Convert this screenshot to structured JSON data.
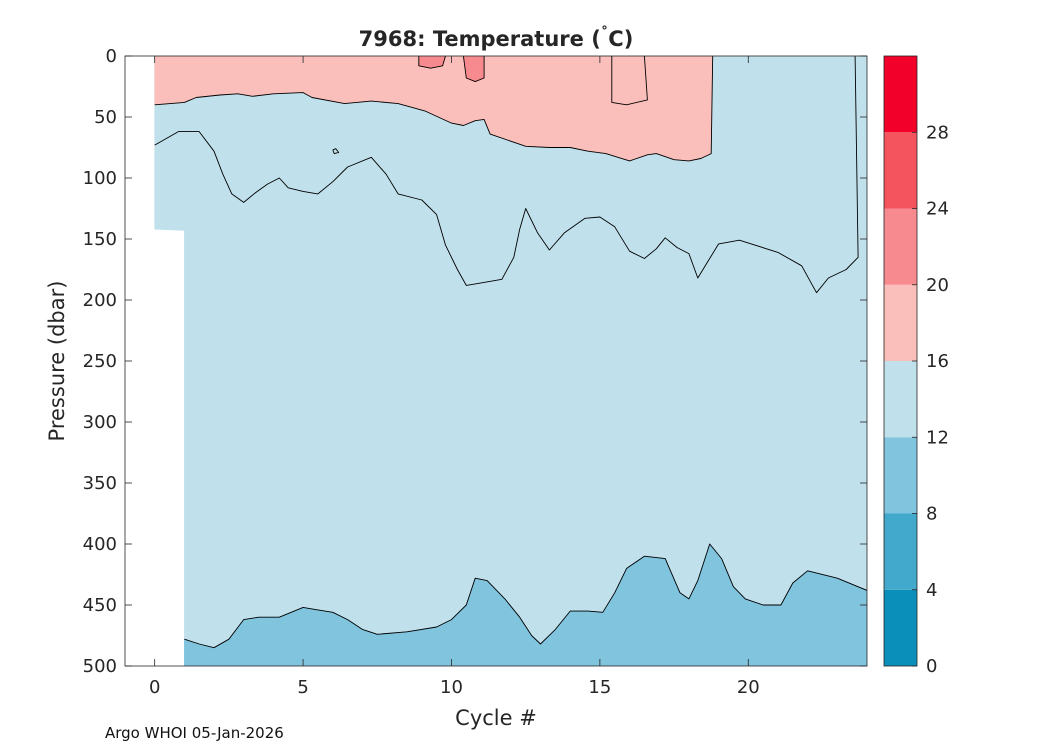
{
  "chart_data": {
    "type": "contour",
    "title_prefix": "7968:  Temperature (",
    "title_degree": "˚",
    "title_suffix": "C)",
    "xlabel": "Cycle #",
    "ylabel": "Pressure (dbar)",
    "xlim": [
      -1,
      24
    ],
    "ylim": [
      0,
      500
    ],
    "xticks": [
      0,
      5,
      10,
      15,
      20
    ],
    "yticks": [
      0,
      50,
      100,
      150,
      200,
      250,
      300,
      350,
      400,
      450,
      500
    ],
    "colorbar": {
      "range": [
        0,
        32
      ],
      "tick_values": [
        0,
        4,
        8,
        12,
        16,
        20,
        24,
        28
      ],
      "levels": [
        {
          "from": 0,
          "to": 4,
          "color": "#0a8fba"
        },
        {
          "from": 4,
          "to": 8,
          "color": "#42a8cc"
        },
        {
          "from": 8,
          "to": 12,
          "color": "#80c4dd"
        },
        {
          "from": 12,
          "to": 16,
          "color": "#c0e0ec"
        },
        {
          "from": 16,
          "to": 20,
          "color": "#fbbfbb"
        },
        {
          "from": 20,
          "to": 24,
          "color": "#f78a8e"
        },
        {
          "from": 24,
          "to": 28,
          "color": "#f4545e"
        },
        {
          "from": 28,
          "to": 32,
          "color": "#f2002a"
        }
      ]
    },
    "data_coverage": [
      {
        "x": 0,
        "max_pressure": 142
      },
      {
        "x": 1,
        "max_pressure": 143
      }
    ],
    "regions": [
      {
        "name": "warm-layer-16-20",
        "level": 16,
        "points": [
          [
            0,
            0
          ],
          [
            18.8,
            0
          ],
          [
            18.75,
            80
          ],
          [
            18.4,
            84
          ],
          [
            18,
            86
          ],
          [
            17.5,
            85
          ],
          [
            16.9,
            80
          ],
          [
            16.6,
            81
          ],
          [
            16,
            86
          ],
          [
            15.2,
            80
          ],
          [
            14.6,
            78
          ],
          [
            14,
            75
          ],
          [
            13.3,
            75
          ],
          [
            12.5,
            74
          ],
          [
            11.3,
            64
          ],
          [
            11.1,
            52
          ],
          [
            10.8,
            53
          ],
          [
            10.4,
            57
          ],
          [
            10,
            55
          ],
          [
            9.1,
            45
          ],
          [
            8.2,
            39
          ],
          [
            7.3,
            37
          ],
          [
            6.4,
            39
          ],
          [
            5.3,
            34
          ],
          [
            5,
            30
          ],
          [
            4,
            31
          ],
          [
            3.3,
            33
          ],
          [
            2.8,
            31
          ],
          [
            2.2,
            32
          ],
          [
            1.4,
            34
          ],
          [
            1,
            38
          ],
          [
            0,
            40
          ]
        ]
      },
      {
        "name": "warm-patch-20-24-a",
        "level": 20,
        "points": [
          [
            8.9,
            0
          ],
          [
            9.8,
            0
          ],
          [
            9.7,
            8
          ],
          [
            9.3,
            10
          ],
          [
            8.9,
            8
          ]
        ]
      },
      {
        "name": "warm-patch-20-24-b",
        "level": 20,
        "points": [
          [
            10.4,
            0
          ],
          [
            11.1,
            0
          ],
          [
            11.1,
            18
          ],
          [
            10.8,
            21
          ],
          [
            10.5,
            18
          ]
        ]
      },
      {
        "name": "subsurface-layer-8-12",
        "level": 8,
        "points": [
          [
            1,
            478
          ],
          [
            1.5,
            482
          ],
          [
            2,
            485
          ],
          [
            2.5,
            478
          ],
          [
            3,
            462
          ],
          [
            3.5,
            460
          ],
          [
            4.2,
            460
          ],
          [
            5,
            452
          ],
          [
            5.5,
            454
          ],
          [
            6,
            456
          ],
          [
            6.5,
            462
          ],
          [
            7,
            470
          ],
          [
            7.5,
            474
          ],
          [
            8.5,
            472
          ],
          [
            9.5,
            468
          ],
          [
            10,
            462
          ],
          [
            10.5,
            450
          ],
          [
            10.8,
            428
          ],
          [
            11.2,
            430
          ],
          [
            11.8,
            445
          ],
          [
            12.3,
            460
          ],
          [
            12.7,
            475
          ],
          [
            13,
            482
          ],
          [
            13.5,
            470
          ],
          [
            14,
            455
          ],
          [
            14.6,
            455
          ],
          [
            15.1,
            456
          ],
          [
            15.5,
            440
          ],
          [
            15.9,
            420
          ],
          [
            16.5,
            410
          ],
          [
            17.2,
            412
          ],
          [
            17.7,
            440
          ],
          [
            18,
            445
          ],
          [
            18.3,
            430
          ],
          [
            18.7,
            400
          ],
          [
            19.1,
            412
          ],
          [
            19.5,
            435
          ],
          [
            19.9,
            445
          ],
          [
            20.5,
            450
          ],
          [
            21.1,
            450
          ],
          [
            21.5,
            432
          ],
          [
            22,
            422
          ],
          [
            23,
            428
          ],
          [
            24,
            438
          ],
          [
            24,
            500
          ],
          [
            1,
            500
          ]
        ]
      }
    ],
    "contour_lines": [
      {
        "name": "contour-16",
        "points": [
          [
            0,
            40
          ],
          [
            1,
            38
          ],
          [
            1.4,
            34
          ],
          [
            2.2,
            32
          ],
          [
            2.8,
            31
          ],
          [
            3.3,
            33
          ],
          [
            4,
            31
          ],
          [
            5,
            30
          ],
          [
            5.3,
            34
          ],
          [
            6.4,
            39
          ],
          [
            7.3,
            37
          ],
          [
            8.2,
            39
          ],
          [
            9.1,
            45
          ],
          [
            10,
            55
          ],
          [
            10.4,
            57
          ],
          [
            10.8,
            53
          ],
          [
            11.1,
            52
          ],
          [
            11.3,
            64
          ],
          [
            12.5,
            74
          ],
          [
            13.3,
            75
          ],
          [
            14,
            75
          ],
          [
            14.6,
            78
          ],
          [
            15.2,
            80
          ],
          [
            16,
            86
          ],
          [
            16.6,
            81
          ],
          [
            16.9,
            80
          ],
          [
            17.5,
            85
          ],
          [
            18,
            86
          ],
          [
            18.4,
            84
          ],
          [
            18.75,
            80
          ],
          [
            18.8,
            0
          ]
        ]
      },
      {
        "name": "contour-12",
        "points": [
          [
            0,
            73
          ],
          [
            0.8,
            62
          ],
          [
            1.5,
            62
          ],
          [
            2,
            78
          ],
          [
            2.3,
            97
          ],
          [
            2.6,
            113
          ],
          [
            3,
            120
          ],
          [
            3.4,
            112
          ],
          [
            3.8,
            105
          ],
          [
            4.2,
            100
          ],
          [
            4.5,
            108
          ],
          [
            5,
            111
          ],
          [
            5.5,
            113
          ],
          [
            6,
            103
          ],
          [
            6.5,
            91
          ],
          [
            7.3,
            83
          ],
          [
            7.8,
            97
          ],
          [
            8.2,
            113
          ],
          [
            9,
            118
          ],
          [
            9.5,
            130
          ],
          [
            9.8,
            155
          ],
          [
            10.2,
            175
          ],
          [
            10.5,
            188
          ],
          [
            11,
            186
          ],
          [
            11.7,
            183
          ],
          [
            12.1,
            165
          ],
          [
            12.3,
            142
          ],
          [
            12.5,
            125
          ],
          [
            12.9,
            145
          ],
          [
            13.3,
            159
          ],
          [
            13.8,
            145
          ],
          [
            14.5,
            133
          ],
          [
            15,
            132
          ],
          [
            15.5,
            140
          ],
          [
            16,
            160
          ],
          [
            16.5,
            166
          ],
          [
            16.9,
            158
          ],
          [
            17.2,
            149
          ],
          [
            17.6,
            157
          ],
          [
            18,
            162
          ],
          [
            18.3,
            182
          ],
          [
            18.6,
            170
          ],
          [
            19,
            154
          ],
          [
            19.7,
            151
          ],
          [
            21,
            161
          ],
          [
            21.8,
            172
          ],
          [
            22.3,
            194
          ],
          [
            22.7,
            182
          ],
          [
            23.3,
            175
          ],
          [
            23.7,
            165
          ],
          [
            23.6,
            0
          ]
        ]
      },
      {
        "name": "contour-20-a",
        "points": [
          [
            8.9,
            0
          ],
          [
            8.9,
            8
          ],
          [
            9.3,
            10
          ],
          [
            9.7,
            8
          ],
          [
            9.8,
            0
          ]
        ]
      },
      {
        "name": "contour-20-b",
        "points": [
          [
            10.4,
            0
          ],
          [
            10.5,
            18
          ],
          [
            10.8,
            21
          ],
          [
            11.1,
            18
          ],
          [
            11.1,
            0
          ]
        ]
      },
      {
        "name": "contour-12-inner",
        "points": [
          [
            15.4,
            0
          ],
          [
            15.4,
            38
          ],
          [
            15.9,
            40
          ],
          [
            16.6,
            36
          ],
          [
            16.5,
            0
          ]
        ]
      },
      {
        "name": "contour-12-small",
        "points": [
          [
            6.0,
            77
          ],
          [
            6.1,
            76
          ],
          [
            6.2,
            79
          ],
          [
            6.05,
            80
          ],
          [
            6.0,
            77
          ]
        ]
      },
      {
        "name": "contour-8",
        "points": [
          [
            1,
            478
          ],
          [
            1.5,
            482
          ],
          [
            2,
            485
          ],
          [
            2.5,
            478
          ],
          [
            3,
            462
          ],
          [
            3.5,
            460
          ],
          [
            4.2,
            460
          ],
          [
            5,
            452
          ],
          [
            5.5,
            454
          ],
          [
            6,
            456
          ],
          [
            6.5,
            462
          ],
          [
            7,
            470
          ],
          [
            7.5,
            474
          ],
          [
            8.5,
            472
          ],
          [
            9.5,
            468
          ],
          [
            10,
            462
          ],
          [
            10.5,
            450
          ],
          [
            10.8,
            428
          ],
          [
            11.2,
            430
          ],
          [
            11.8,
            445
          ],
          [
            12.3,
            460
          ],
          [
            12.7,
            475
          ],
          [
            13,
            482
          ],
          [
            13.5,
            470
          ],
          [
            14,
            455
          ],
          [
            14.6,
            455
          ],
          [
            15.1,
            456
          ],
          [
            15.5,
            440
          ],
          [
            15.9,
            420
          ],
          [
            16.5,
            410
          ],
          [
            17.2,
            412
          ],
          [
            17.7,
            440
          ],
          [
            18,
            445
          ],
          [
            18.3,
            430
          ],
          [
            18.7,
            400
          ],
          [
            19.1,
            412
          ],
          [
            19.5,
            435
          ],
          [
            19.9,
            445
          ],
          [
            20.5,
            450
          ],
          [
            21.1,
            450
          ],
          [
            21.5,
            432
          ],
          [
            22,
            422
          ],
          [
            23,
            428
          ],
          [
            24,
            438
          ]
        ]
      }
    ]
  },
  "footer": {
    "credit": "Argo WHOI 05-Jan-2026"
  }
}
